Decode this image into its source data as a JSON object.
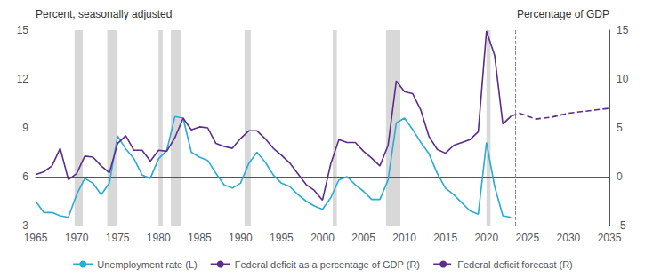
{
  "chart_data": {
    "type": "line",
    "ylabel": "Percent, seasonally adjusted",
    "y2label": "Percentage of GDP",
    "xlim": [
      1965,
      2035
    ],
    "xticks": [
      1965,
      1970,
      1975,
      1980,
      1985,
      1990,
      1995,
      2000,
      2005,
      2010,
      2015,
      2020,
      2025,
      2030,
      2035
    ],
    "ylim": [
      3,
      15
    ],
    "yticks": [
      3,
      6,
      9,
      12,
      15
    ],
    "y2lim": [
      -5,
      15
    ],
    "y2ticks": [
      -5,
      0,
      5,
      10,
      15
    ],
    "grid": false,
    "legend": "bottom",
    "series": [
      {
        "name": "Unemployment rate (L)",
        "axis": "y",
        "color": "#29ABD4",
        "line_style": "solid",
        "x": [
          1965,
          1966,
          1967,
          1968,
          1969,
          1970,
          1971,
          1972,
          1973,
          1974,
          1975,
          1976,
          1977,
          1978,
          1979,
          1980,
          1981,
          1982,
          1983,
          1984,
          1985,
          1986,
          1987,
          1988,
          1989,
          1990,
          1991,
          1992,
          1993,
          1994,
          1995,
          1996,
          1997,
          1998,
          1999,
          2000,
          2001,
          2002,
          2003,
          2004,
          2005,
          2006,
          2007,
          2008,
          2009,
          2010,
          2011,
          2012,
          2013,
          2014,
          2015,
          2016,
          2017,
          2018,
          2019,
          2020,
          2021,
          2022,
          2023
        ],
        "values": [
          4.5,
          3.8,
          3.8,
          3.6,
          3.5,
          4.9,
          5.9,
          5.6,
          4.9,
          5.6,
          8.5,
          7.7,
          7.1,
          6.1,
          5.9,
          7.1,
          7.6,
          9.7,
          9.6,
          7.5,
          7.2,
          7.0,
          6.2,
          5.5,
          5.3,
          5.6,
          6.8,
          7.5,
          6.9,
          6.1,
          5.6,
          5.4,
          4.9,
          4.5,
          4.2,
          4.0,
          4.7,
          5.8,
          6.0,
          5.5,
          5.1,
          4.6,
          4.6,
          5.8,
          9.3,
          9.6,
          8.9,
          8.1,
          7.4,
          6.2,
          5.3,
          4.9,
          4.4,
          3.9,
          3.7,
          8.1,
          5.4,
          3.6,
          3.5
        ]
      },
      {
        "name": "Federal deficit as a percentage of GDP (R)",
        "axis": "y2",
        "color": "#5B2C8C",
        "line_style": "solid",
        "x": [
          1965,
          1966,
          1967,
          1968,
          1969,
          1970,
          1971,
          1972,
          1973,
          1974,
          1975,
          1976,
          1977,
          1978,
          1979,
          1980,
          1981,
          1982,
          1983,
          1984,
          1985,
          1986,
          1987,
          1988,
          1989,
          1990,
          1991,
          1992,
          1993,
          1994,
          1995,
          1996,
          1997,
          1998,
          1999,
          2000,
          2001,
          2002,
          2003,
          2004,
          2005,
          2006,
          2007,
          2008,
          2009,
          2010,
          2011,
          2012,
          2013,
          2014,
          2015,
          2016,
          2017,
          2018,
          2019,
          2020,
          2021,
          2022,
          2023
        ],
        "values": [
          0.2,
          0.5,
          1.1,
          2.9,
          -0.3,
          0.3,
          2.1,
          2.0,
          1.1,
          0.4,
          3.4,
          4.2,
          2.7,
          2.7,
          1.6,
          2.7,
          2.6,
          4.0,
          6.0,
          4.8,
          5.1,
          5.0,
          3.4,
          3.1,
          2.9,
          3.9,
          4.7,
          4.7,
          3.9,
          2.9,
          2.2,
          1.4,
          0.3,
          -0.8,
          -1.4,
          -2.4,
          1.3,
          3.8,
          3.5,
          3.5,
          2.6,
          1.9,
          1.1,
          3.2,
          9.8,
          8.7,
          8.5,
          6.8,
          4.1,
          2.8,
          2.4,
          3.2,
          3.5,
          3.8,
          4.6,
          14.9,
          12.4,
          5.4,
          6.2
        ]
      },
      {
        "name": "Federal deficit forecast (R)",
        "axis": "y2",
        "color": "#5B2C8C",
        "line_style": "dashed",
        "x": [
          2023,
          2024,
          2025,
          2026,
          2027,
          2028,
          2029,
          2030,
          2031,
          2032,
          2033,
          2034,
          2035
        ],
        "values": [
          6.2,
          6.5,
          6.2,
          5.9,
          6.0,
          6.1,
          6.3,
          6.5,
          6.6,
          6.7,
          6.8,
          6.9,
          7.0
        ]
      }
    ],
    "bands": {
      "ranges": [
        [
          1969.75,
          1970.75
        ],
        [
          1973.75,
          1975.0
        ],
        [
          1980.0,
          1980.5
        ],
        [
          1981.5,
          1982.75
        ],
        [
          1990.5,
          1991.25
        ],
        [
          2001.25,
          2001.75
        ],
        [
          2007.75,
          2009.5
        ],
        [
          2020.0,
          2020.5
        ]
      ],
      "color": "#D8D8D8"
    },
    "vlines": [
      {
        "x": 2023.5,
        "color": "#888888",
        "line_style": "dashed"
      }
    ]
  }
}
